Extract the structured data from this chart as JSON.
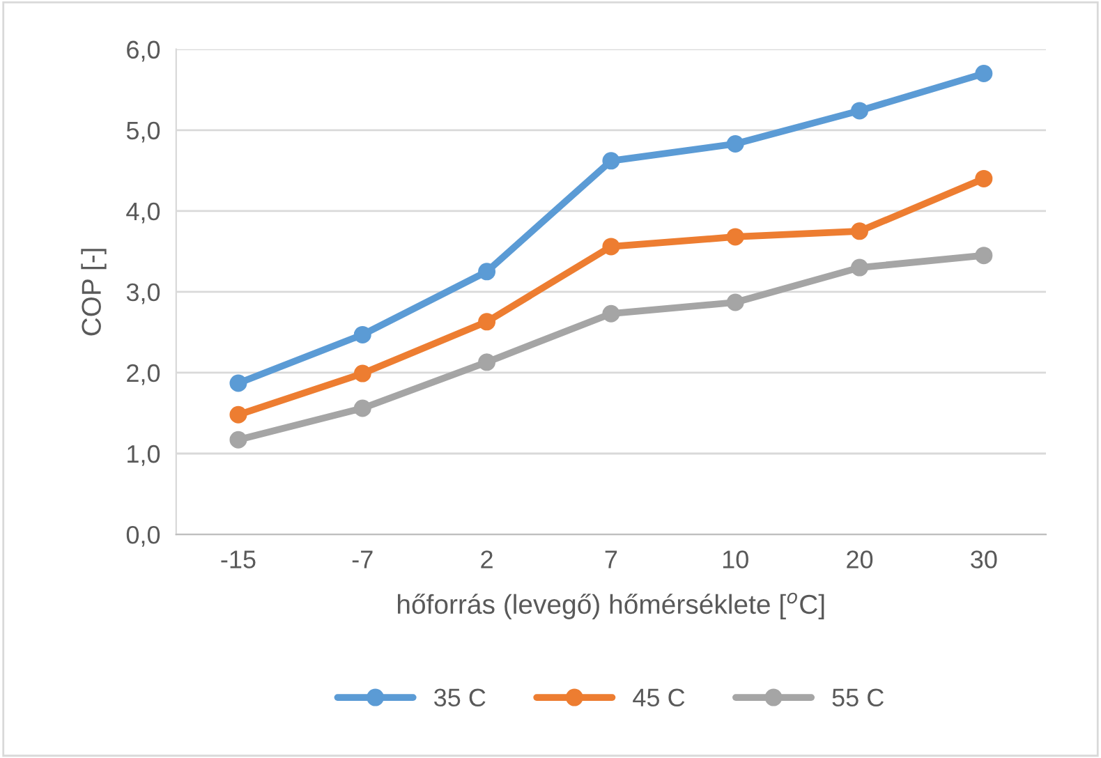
{
  "chart_data": {
    "type": "line",
    "xlabel": "hőforrás (levegő) hőmérséklete [$^{o}$C]",
    "ylabel": "COP [-]",
    "categories": [
      "-15",
      "-7",
      "2",
      "7",
      "10",
      "20",
      "30"
    ],
    "series": [
      {
        "name": "35 C",
        "color": "#5b9bd5",
        "values": [
          1.87,
          2.47,
          3.25,
          4.62,
          4.83,
          5.24,
          5.7
        ]
      },
      {
        "name": "45 C",
        "color": "#ed7d31",
        "values": [
          1.48,
          1.99,
          2.63,
          3.56,
          3.68,
          3.75,
          4.4
        ]
      },
      {
        "name": "55 C",
        "color": "#a5a5a5",
        "values": [
          1.17,
          1.56,
          2.13,
          2.73,
          2.87,
          3.3,
          3.45
        ]
      }
    ],
    "ylim": [
      0,
      6
    ],
    "yticks": [
      {
        "value": 0,
        "label": "0,0"
      },
      {
        "value": 1,
        "label": "1,0"
      },
      {
        "value": 2,
        "label": "2,0"
      },
      {
        "value": 3,
        "label": "3,0"
      },
      {
        "value": 4,
        "label": "4,0"
      },
      {
        "value": 5,
        "label": "5,0"
      },
      {
        "value": 6,
        "label": "6,0"
      }
    ],
    "grid": "y",
    "legend": "bottom",
    "marker": "circle",
    "line_style": "solid"
  }
}
